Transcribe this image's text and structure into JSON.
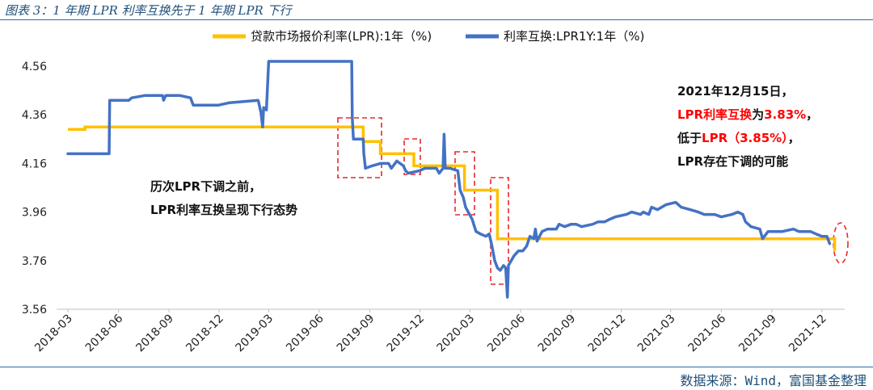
{
  "figure": {
    "caption": "图表 3：1 年期 LPR 利率互换先于 1 年期 LPR 下行",
    "source": "数据来源：Wind，富国基金整理"
  },
  "colors": {
    "lpr": "#FFC000",
    "swap": "#4472C4",
    "highlight_box": "#E8282D",
    "highlight_text": "#FF0000",
    "text": "#111111",
    "axis": "#BFBFBF"
  },
  "chart_data": {
    "type": "line",
    "x_axis": {
      "type": "date",
      "range": [
        "2018-03",
        "2022-01"
      ],
      "tick_labels": [
        "2018-03",
        "2018-06",
        "2018-09",
        "2018-12",
        "2019-03",
        "2019-06",
        "2019-09",
        "2019-12",
        "2020-03",
        "2020-06",
        "2020-09",
        "2020-12",
        "2021-03",
        "2021-06",
        "2021-09",
        "2021-12"
      ]
    },
    "y_axis": {
      "range": [
        3.56,
        4.6
      ],
      "ticks": [
        3.56,
        3.76,
        3.96,
        4.16,
        4.36,
        4.56
      ],
      "tick_labels": [
        "3.56",
        "3.76",
        "3.96",
        "4.16",
        "4.36",
        "4.56"
      ]
    },
    "grid": false,
    "legend_position": "top",
    "series": [
      {
        "name": "贷款市场报价利率(LPR):1年（%)",
        "color": "#FFC000",
        "step": true,
        "points": [
          [
            "2018-03-01",
            4.3
          ],
          [
            "2018-04-01",
            4.31
          ],
          [
            "2019-08-20",
            4.31
          ],
          [
            "2019-08-20",
            4.25
          ],
          [
            "2019-09-20",
            4.2
          ],
          [
            "2019-11-20",
            4.15
          ],
          [
            "2020-02-20",
            4.05
          ],
          [
            "2020-04-20",
            3.85
          ],
          [
            "2021-12-20",
            3.85
          ],
          [
            "2021-12-24",
            3.8
          ]
        ]
      },
      {
        "name": "利率互换:LPR1Y:1年（%)",
        "color": "#4472C4",
        "step": false,
        "points": [
          [
            "2018-03-01",
            4.2
          ],
          [
            "2018-05-15",
            4.2
          ],
          [
            "2018-05-16",
            4.42
          ],
          [
            "2018-06-20",
            4.42
          ],
          [
            "2018-06-25",
            4.43
          ],
          [
            "2018-07-20",
            4.44
          ],
          [
            "2018-08-20",
            4.44
          ],
          [
            "2018-08-22",
            4.42
          ],
          [
            "2018-08-26",
            4.44
          ],
          [
            "2018-09-20",
            4.44
          ],
          [
            "2018-10-10",
            4.43
          ],
          [
            "2018-10-15",
            4.4
          ],
          [
            "2018-11-30",
            4.4
          ],
          [
            "2018-12-20",
            4.41
          ],
          [
            "2019-02-10",
            4.42
          ],
          [
            "2019-02-15",
            4.37
          ],
          [
            "2019-02-18",
            4.31
          ],
          [
            "2019-02-20",
            4.39
          ],
          [
            "2019-02-25",
            4.38
          ],
          [
            "2019-03-01",
            4.58
          ],
          [
            "2019-07-30",
            4.58
          ],
          [
            "2019-07-31",
            4.35
          ],
          [
            "2019-08-02",
            4.26
          ],
          [
            "2019-08-20",
            4.26
          ],
          [
            "2019-08-21",
            4.2
          ],
          [
            "2019-08-24",
            4.14
          ],
          [
            "2019-09-05",
            4.15
          ],
          [
            "2019-09-20",
            4.16
          ],
          [
            "2019-10-05",
            4.16
          ],
          [
            "2019-10-10",
            4.14
          ],
          [
            "2019-10-20",
            4.17
          ],
          [
            "2019-11-01",
            4.15
          ],
          [
            "2019-11-05",
            4.13
          ],
          [
            "2019-11-10",
            4.12
          ],
          [
            "2019-11-30",
            4.13
          ],
          [
            "2019-12-10",
            4.14
          ],
          [
            "2019-12-31",
            4.14
          ],
          [
            "2020-01-05",
            4.12
          ],
          [
            "2020-01-12",
            4.14
          ],
          [
            "2020-01-14",
            4.28
          ],
          [
            "2020-01-16",
            4.14
          ],
          [
            "2020-01-25",
            4.14
          ],
          [
            "2020-02-08",
            4.13
          ],
          [
            "2020-02-12",
            4.05
          ],
          [
            "2020-02-18",
            4.02
          ],
          [
            "2020-02-22",
            3.98
          ],
          [
            "2020-03-05",
            3.93
          ],
          [
            "2020-03-12",
            3.88
          ],
          [
            "2020-03-20",
            3.87
          ],
          [
            "2020-03-30",
            3.86
          ],
          [
            "2020-04-05",
            3.87
          ],
          [
            "2020-04-10",
            3.82
          ],
          [
            "2020-04-15",
            3.76
          ],
          [
            "2020-04-20",
            3.73
          ],
          [
            "2020-04-25",
            3.72
          ],
          [
            "2020-05-01",
            3.74
          ],
          [
            "2020-05-05",
            3.73
          ],
          [
            "2020-05-08",
            3.61
          ],
          [
            "2020-05-10",
            3.74
          ],
          [
            "2020-05-20",
            3.78
          ],
          [
            "2020-05-28",
            3.8
          ],
          [
            "2020-06-05",
            3.8
          ],
          [
            "2020-06-12",
            3.82
          ],
          [
            "2020-06-18",
            3.86
          ],
          [
            "2020-06-25",
            3.85
          ],
          [
            "2020-06-28",
            3.89
          ],
          [
            "2020-07-01",
            3.84
          ],
          [
            "2020-07-10",
            3.88
          ],
          [
            "2020-07-20",
            3.89
          ],
          [
            "2020-08-05",
            3.89
          ],
          [
            "2020-08-10",
            3.91
          ],
          [
            "2020-08-20",
            3.9
          ],
          [
            "2020-09-01",
            3.91
          ],
          [
            "2020-09-10",
            3.91
          ],
          [
            "2020-09-20",
            3.9
          ],
          [
            "2020-10-10",
            3.91
          ],
          [
            "2020-10-20",
            3.92
          ],
          [
            "2020-11-01",
            3.92
          ],
          [
            "2020-11-10",
            3.93
          ],
          [
            "2020-11-20",
            3.94
          ],
          [
            "2020-12-10",
            3.95
          ],
          [
            "2020-12-20",
            3.96
          ],
          [
            "2021-01-05",
            3.95
          ],
          [
            "2021-01-10",
            3.96
          ],
          [
            "2021-01-20",
            3.95
          ],
          [
            "2021-01-25",
            3.98
          ],
          [
            "2021-02-05",
            3.97
          ],
          [
            "2021-02-20",
            3.99
          ],
          [
            "2021-03-10",
            4.0
          ],
          [
            "2021-03-20",
            3.98
          ],
          [
            "2021-04-05",
            3.97
          ],
          [
            "2021-04-20",
            3.96
          ],
          [
            "2021-05-01",
            3.95
          ],
          [
            "2021-05-20",
            3.95
          ],
          [
            "2021-06-01",
            3.94
          ],
          [
            "2021-06-20",
            3.95
          ],
          [
            "2021-07-01",
            3.96
          ],
          [
            "2021-07-10",
            3.95
          ],
          [
            "2021-07-15",
            3.92
          ],
          [
            "2021-07-25",
            3.9
          ],
          [
            "2021-08-10",
            3.89
          ],
          [
            "2021-08-15",
            3.85
          ],
          [
            "2021-08-25",
            3.88
          ],
          [
            "2021-09-05",
            3.88
          ],
          [
            "2021-09-20",
            3.88
          ],
          [
            "2021-10-10",
            3.89
          ],
          [
            "2021-10-20",
            3.88
          ],
          [
            "2021-11-10",
            3.88
          ],
          [
            "2021-11-20",
            3.87
          ],
          [
            "2021-12-01",
            3.86
          ],
          [
            "2021-12-10",
            3.86
          ],
          [
            "2021-12-15",
            3.83
          ]
        ]
      }
    ],
    "annotations": {
      "left_note": [
        "历次LPR下调之前，",
        "LPR利率互换呈现下行态势"
      ],
      "right_note": {
        "line1": "2021年12月15日，",
        "line2_red": "LPR利率互换",
        "line2_black": "为",
        "line2_value": "3.83%",
        "line2_end": "，",
        "line3_black": "低于",
        "line3_red": "LPR（3.85%）",
        "line3_end": "，",
        "line4": "LPR存在下调的可能"
      }
    }
  }
}
